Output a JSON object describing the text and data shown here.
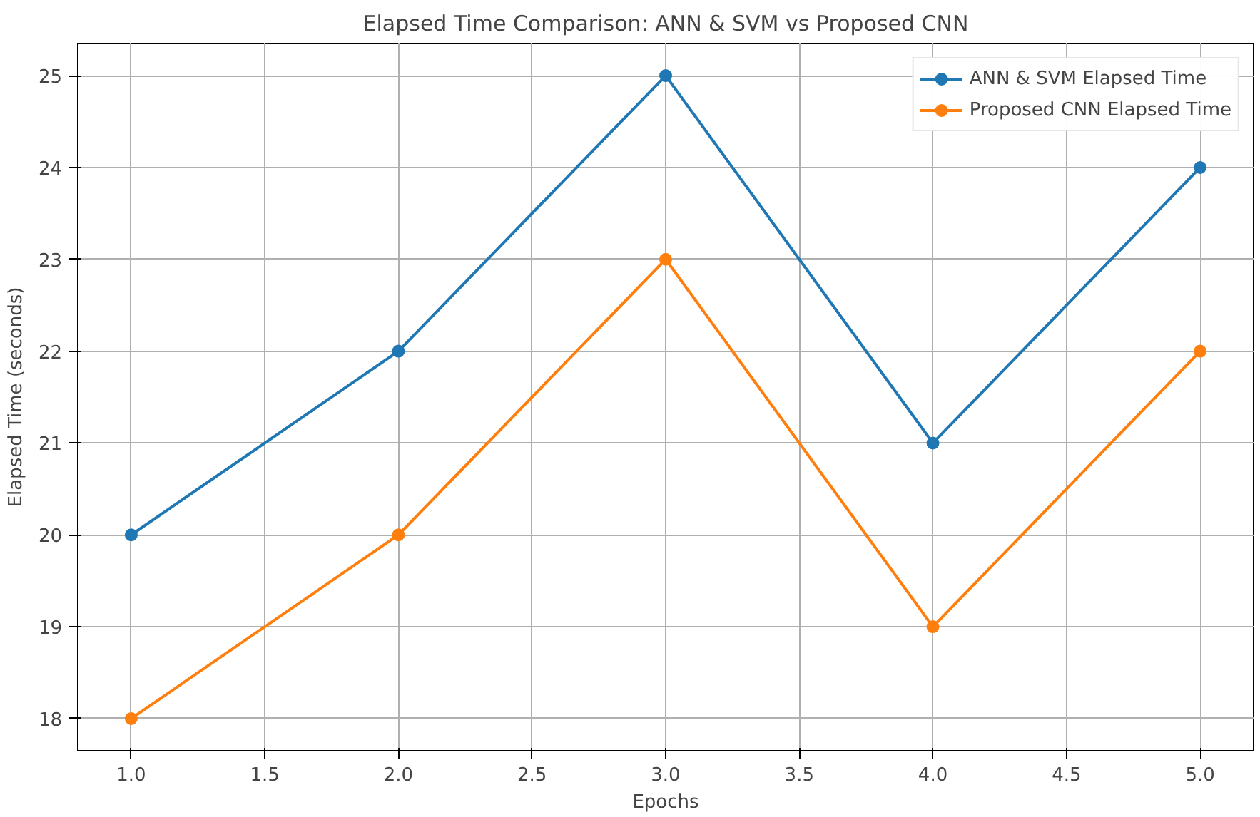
{
  "chart_data": {
    "type": "line",
    "title": "Elapsed Time Comparison: ANN & SVM vs Proposed CNN",
    "xlabel": "Epochs",
    "ylabel": "Elapsed Time (seconds)",
    "x": [
      1,
      2,
      3,
      4,
      5
    ],
    "series": [
      {
        "name": "ANN & SVM Elapsed Time",
        "color": "#1f77b4",
        "values": [
          20,
          22,
          25,
          21,
          24
        ]
      },
      {
        "name": "Proposed CNN Elapsed Time",
        "color": "#ff7f0e",
        "values": [
          18,
          20,
          23,
          19,
          22
        ]
      }
    ],
    "xlim": [
      0.8,
      5.2
    ],
    "ylim": [
      17.65,
      25.35
    ],
    "xticks": [
      {
        "value": 1,
        "label": "1.0"
      },
      {
        "value": 1.5,
        "label": "1.5"
      },
      {
        "value": 2,
        "label": "2.0"
      },
      {
        "value": 2.5,
        "label": "2.5"
      },
      {
        "value": 3,
        "label": "3.0"
      },
      {
        "value": 3.5,
        "label": "3.5"
      },
      {
        "value": 4,
        "label": "4.0"
      },
      {
        "value": 4.5,
        "label": "4.5"
      },
      {
        "value": 5,
        "label": "5.0"
      }
    ],
    "yticks": [
      18,
      19,
      20,
      21,
      22,
      23,
      24,
      25
    ],
    "grid": true,
    "legend": "top right",
    "marker": "circle",
    "line_style": "solid"
  }
}
